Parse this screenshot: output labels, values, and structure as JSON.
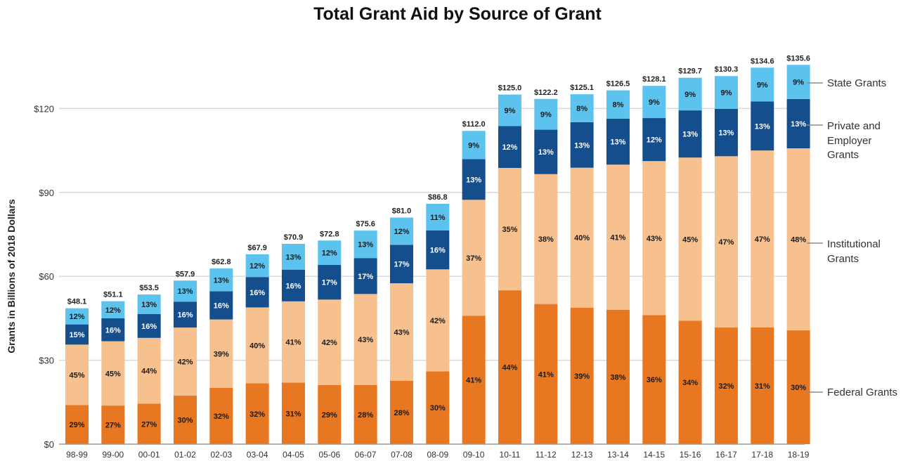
{
  "chart_data": {
    "type": "bar",
    "stacked": true,
    "title": "Total Grant Aid by Source of Grant",
    "ylabel": "Grants in Billions of 2018 Dollars",
    "xlabel": "",
    "ylim": [
      0,
      135
    ],
    "yticks": [
      0,
      30,
      60,
      90,
      120
    ],
    "ytick_labels": [
      "$0",
      "$30",
      "$60",
      "$90",
      "$120"
    ],
    "grid": true,
    "legend": "right",
    "categories": [
      "98-99",
      "99-00",
      "00-01",
      "01-02",
      "02-03",
      "03-04",
      "04-05",
      "05-06",
      "06-07",
      "07-08",
      "08-09",
      "09-10",
      "10-11",
      "11-12",
      "12-13",
      "13-14",
      "14-15",
      "15-16",
      "16-17",
      "17-18",
      "18-19"
    ],
    "totals": [
      48.1,
      51.1,
      53.5,
      57.9,
      62.8,
      67.9,
      70.9,
      72.8,
      75.6,
      81.0,
      86.8,
      112.0,
      125.0,
      122.2,
      125.1,
      126.5,
      128.1,
      129.7,
      130.3,
      134.6,
      135.6
    ],
    "total_labels": [
      "$48.1",
      "$51.1",
      "$53.5",
      "$57.9",
      "$62.8",
      "$67.9",
      "$70.9",
      "$72.8",
      "$75.6",
      "$81.0",
      "$86.8",
      "$112.0",
      "$125.0",
      "$122.2",
      "$125.1",
      "$126.5",
      "$128.1",
      "$129.7",
      "$130.3",
      "$134.6",
      "$135.6"
    ],
    "series": [
      {
        "name": "Federal Grants",
        "color": "#e87722",
        "label_color": "#1a1a1a",
        "percents": [
          29,
          27,
          27,
          30,
          32,
          32,
          31,
          29,
          28,
          28,
          30,
          41,
          44,
          41,
          39,
          38,
          36,
          34,
          32,
          31,
          30
        ]
      },
      {
        "name": "Institutional Grants",
        "color": "#f7c08f",
        "label_color": "#1a1a1a",
        "percents": [
          45,
          45,
          44,
          42,
          39,
          40,
          41,
          42,
          43,
          43,
          42,
          37,
          35,
          38,
          40,
          41,
          43,
          45,
          47,
          47,
          48
        ]
      },
      {
        "name": "Private and Employer Grants",
        "color": "#154e8c",
        "label_color": "#ffffff",
        "percents": [
          15,
          16,
          16,
          16,
          16,
          16,
          16,
          17,
          17,
          17,
          16,
          13,
          12,
          13,
          13,
          13,
          12,
          13,
          13,
          13,
          13
        ]
      },
      {
        "name": "State Grants",
        "color": "#5bc3ee",
        "label_color": "#1a1a1a",
        "percents": [
          12,
          12,
          13,
          13,
          13,
          12,
          13,
          12,
          13,
          12,
          11,
          9,
          9,
          9,
          8,
          8,
          9,
          9,
          9,
          9,
          9
        ]
      }
    ],
    "legend_entries": [
      {
        "lines": [
          "State Grants"
        ]
      },
      {
        "lines": [
          "Private and",
          "Employer",
          "Grants"
        ]
      },
      {
        "lines": [
          "Institutional",
          "Grants"
        ]
      },
      {
        "lines": [
          "Federal Grants"
        ]
      }
    ],
    "colors": {
      "grid": "#d9d9d9",
      "axis": "#999999",
      "text": "#333333"
    }
  }
}
